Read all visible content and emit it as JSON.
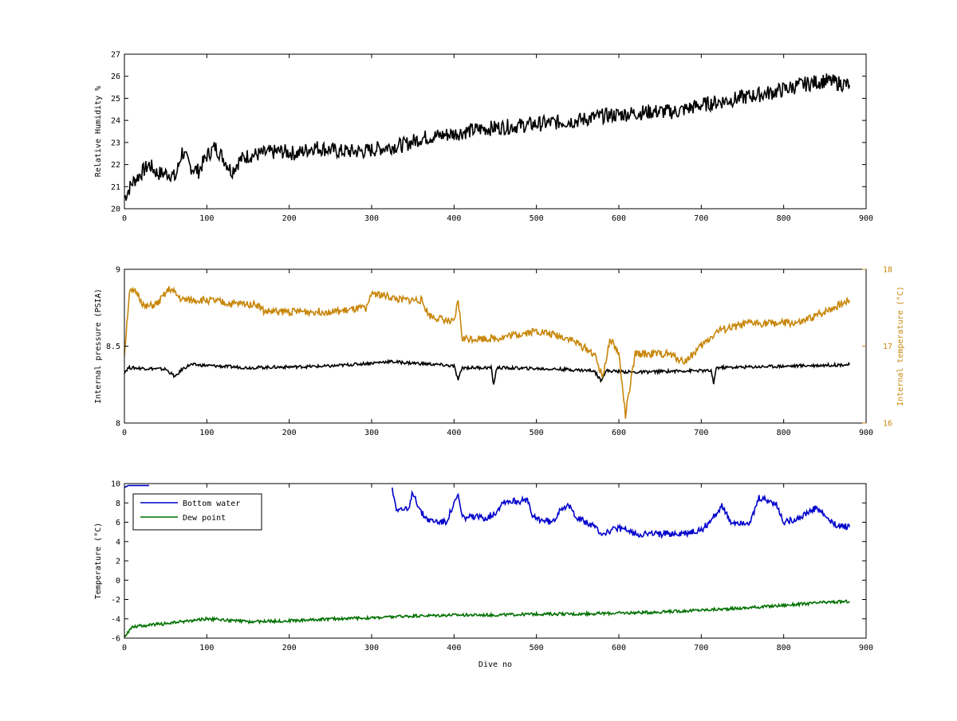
{
  "chart_data": [
    {
      "type": "line",
      "title": "",
      "xlabel": "",
      "ylabel": "Relative Humidity %",
      "xlim": [
        0,
        900
      ],
      "ylim": [
        20,
        27
      ],
      "x_ticks": [
        "0",
        "100",
        "200",
        "300",
        "400",
        "500",
        "600",
        "700",
        "800",
        "900"
      ],
      "y_ticks": [
        "20",
        "21",
        "22",
        "23",
        "24",
        "25",
        "26",
        "27"
      ],
      "grid": false,
      "series": [
        {
          "color": "#000000",
          "noise": 0.35,
          "points": [
            [
              0,
              20.5
            ],
            [
              10,
              21.2
            ],
            [
              20,
              21.6
            ],
            [
              30,
              22.0
            ],
            [
              40,
              21.6
            ],
            [
              55,
              21.6
            ],
            [
              62,
              21.4
            ],
            [
              70,
              22.6
            ],
            [
              80,
              21.9
            ],
            [
              90,
              21.7
            ],
            [
              100,
              22.4
            ],
            [
              110,
              22.8
            ],
            [
              120,
              22.3
            ],
            [
              130,
              21.7
            ],
            [
              140,
              22.2
            ],
            [
              150,
              22.4
            ],
            [
              170,
              22.5
            ],
            [
              190,
              22.6
            ],
            [
              210,
              22.5
            ],
            [
              230,
              22.8
            ],
            [
              260,
              22.6
            ],
            [
              290,
              22.6
            ],
            [
              320,
              22.8
            ],
            [
              340,
              22.9
            ],
            [
              360,
              23.2
            ],
            [
              380,
              23.3
            ],
            [
              400,
              23.4
            ],
            [
              430,
              23.6
            ],
            [
              460,
              23.7
            ],
            [
              490,
              23.8
            ],
            [
              520,
              23.9
            ],
            [
              550,
              24.0
            ],
            [
              580,
              24.2
            ],
            [
              610,
              24.3
            ],
            [
              640,
              24.4
            ],
            [
              670,
              24.4
            ],
            [
              700,
              24.7
            ],
            [
              730,
              24.9
            ],
            [
              760,
              25.1
            ],
            [
              790,
              25.3
            ],
            [
              820,
              25.6
            ],
            [
              850,
              25.8
            ],
            [
              880,
              25.6
            ]
          ]
        }
      ]
    },
    {
      "type": "line",
      "title": "",
      "xlabel": "",
      "ylabel": "Internal pressure (PSIA)",
      "ylabel_right": "Internal temperature (°C)",
      "xlim": [
        0,
        900
      ],
      "ylim": [
        8,
        9
      ],
      "ylim_right": [
        16,
        18
      ],
      "x_ticks": [
        "0",
        "100",
        "200",
        "300",
        "400",
        "500",
        "600",
        "700",
        "800",
        "900"
      ],
      "y_ticks": [
        "8",
        "8.5",
        "9"
      ],
      "y_ticks_right": [
        "16",
        "17",
        "18"
      ],
      "grid": false,
      "series": [
        {
          "axis": "left",
          "color": "#000000",
          "noise": 0.01,
          "points": [
            [
              0,
              8.33
            ],
            [
              5,
              8.36
            ],
            [
              50,
              8.35
            ],
            [
              62,
              8.3
            ],
            [
              70,
              8.35
            ],
            [
              80,
              8.38
            ],
            [
              150,
              8.36
            ],
            [
              250,
              8.37
            ],
            [
              300,
              8.39
            ],
            [
              320,
              8.4
            ],
            [
              380,
              8.38
            ],
            [
              400,
              8.37
            ],
            [
              405,
              8.28
            ],
            [
              410,
              8.36
            ],
            [
              445,
              8.36
            ],
            [
              448,
              8.25
            ],
            [
              452,
              8.36
            ],
            [
              530,
              8.35
            ],
            [
              570,
              8.34
            ],
            [
              578,
              8.28
            ],
            [
              585,
              8.34
            ],
            [
              620,
              8.33
            ],
            [
              680,
              8.34
            ],
            [
              712,
              8.34
            ],
            [
              715,
              8.25
            ],
            [
              718,
              8.36
            ],
            [
              800,
              8.37
            ],
            [
              880,
              8.38
            ]
          ]
        },
        {
          "axis": "right",
          "color": "#c8860a",
          "noise": 0.05,
          "points": [
            [
              0,
              16.9
            ],
            [
              6,
              17.7
            ],
            [
              15,
              17.7
            ],
            [
              25,
              17.5
            ],
            [
              40,
              17.55
            ],
            [
              55,
              17.75
            ],
            [
              70,
              17.6
            ],
            [
              100,
              17.6
            ],
            [
              130,
              17.55
            ],
            [
              160,
              17.55
            ],
            [
              170,
              17.45
            ],
            [
              230,
              17.45
            ],
            [
              260,
              17.45
            ],
            [
              295,
              17.5
            ],
            [
              300,
              17.7
            ],
            [
              335,
              17.6
            ],
            [
              360,
              17.6
            ],
            [
              370,
              17.4
            ],
            [
              400,
              17.3
            ],
            [
              405,
              17.6
            ],
            [
              410,
              17.1
            ],
            [
              450,
              17.1
            ],
            [
              500,
              17.2
            ],
            [
              540,
              17.1
            ],
            [
              570,
              16.9
            ],
            [
              580,
              16.6
            ],
            [
              590,
              17.1
            ],
            [
              600,
              16.9
            ],
            [
              608,
              16.1
            ],
            [
              620,
              16.9
            ],
            [
              660,
              16.9
            ],
            [
              680,
              16.8
            ],
            [
              700,
              17.0
            ],
            [
              720,
              17.2
            ],
            [
              760,
              17.3
            ],
            [
              800,
              17.3
            ],
            [
              820,
              17.3
            ],
            [
              840,
              17.4
            ],
            [
              860,
              17.5
            ],
            [
              880,
              17.6
            ]
          ]
        }
      ]
    },
    {
      "type": "line",
      "title": "",
      "xlabel": "Dive no",
      "ylabel": "Temperature (°C)",
      "xlim": [
        0,
        900
      ],
      "ylim": [
        -6,
        10
      ],
      "x_ticks": [
        "0",
        "100",
        "200",
        "300",
        "400",
        "500",
        "600",
        "700",
        "800",
        "900"
      ],
      "y_ticks": [
        "-6",
        "-4",
        "-2",
        "0",
        "2",
        "4",
        "6",
        "8",
        "10"
      ],
      "grid": false,
      "legend_position": "top-left",
      "series": [
        {
          "name": "Bottom water",
          "color": "#0000cc",
          "noise": 0,
          "points": [
            [
              0,
              9.6
            ],
            [
              5,
              9.8
            ],
            [
              30,
              9.8
            ]
          ]
        },
        {
          "name": "",
          "color": "#0000cc",
          "noise": 0.35,
          "points": [
            [
              325,
              9.4
            ],
            [
              330,
              7.5
            ],
            [
              345,
              7.2
            ],
            [
              350,
              9.2
            ],
            [
              360,
              7.0
            ],
            [
              370,
              6.2
            ],
            [
              390,
              6.0
            ],
            [
              405,
              8.8
            ],
            [
              410,
              6.5
            ],
            [
              440,
              6.5
            ],
            [
              450,
              7.0
            ],
            [
              460,
              8.2
            ],
            [
              490,
              8.2
            ],
            [
              495,
              6.5
            ],
            [
              520,
              6.0
            ],
            [
              530,
              7.6
            ],
            [
              540,
              7.6
            ],
            [
              550,
              6.5
            ],
            [
              570,
              5.5
            ],
            [
              580,
              4.8
            ],
            [
              600,
              5.4
            ],
            [
              620,
              4.8
            ],
            [
              650,
              4.8
            ],
            [
              680,
              4.8
            ],
            [
              700,
              5.2
            ],
            [
              715,
              6.5
            ],
            [
              725,
              7.8
            ],
            [
              735,
              6.0
            ],
            [
              760,
              6.0
            ],
            [
              770,
              8.5
            ],
            [
              790,
              8.0
            ],
            [
              800,
              6.0
            ],
            [
              820,
              6.5
            ],
            [
              840,
              7.5
            ],
            [
              860,
              5.8
            ],
            [
              880,
              5.5
            ]
          ]
        },
        {
          "name": "Dew point",
          "color": "#007000",
          "noise": 0.15,
          "points": [
            [
              0,
              -5.8
            ],
            [
              10,
              -4.8
            ],
            [
              50,
              -4.5
            ],
            [
              100,
              -4.0
            ],
            [
              150,
              -4.3
            ],
            [
              200,
              -4.2
            ],
            [
              250,
              -4.0
            ],
            [
              300,
              -3.9
            ],
            [
              350,
              -3.7
            ],
            [
              400,
              -3.6
            ],
            [
              450,
              -3.6
            ],
            [
              500,
              -3.5
            ],
            [
              550,
              -3.5
            ],
            [
              600,
              -3.4
            ],
            [
              650,
              -3.3
            ],
            [
              700,
              -3.1
            ],
            [
              750,
              -2.9
            ],
            [
              800,
              -2.6
            ],
            [
              850,
              -2.3
            ],
            [
              880,
              -2.2
            ]
          ]
        }
      ]
    }
  ]
}
